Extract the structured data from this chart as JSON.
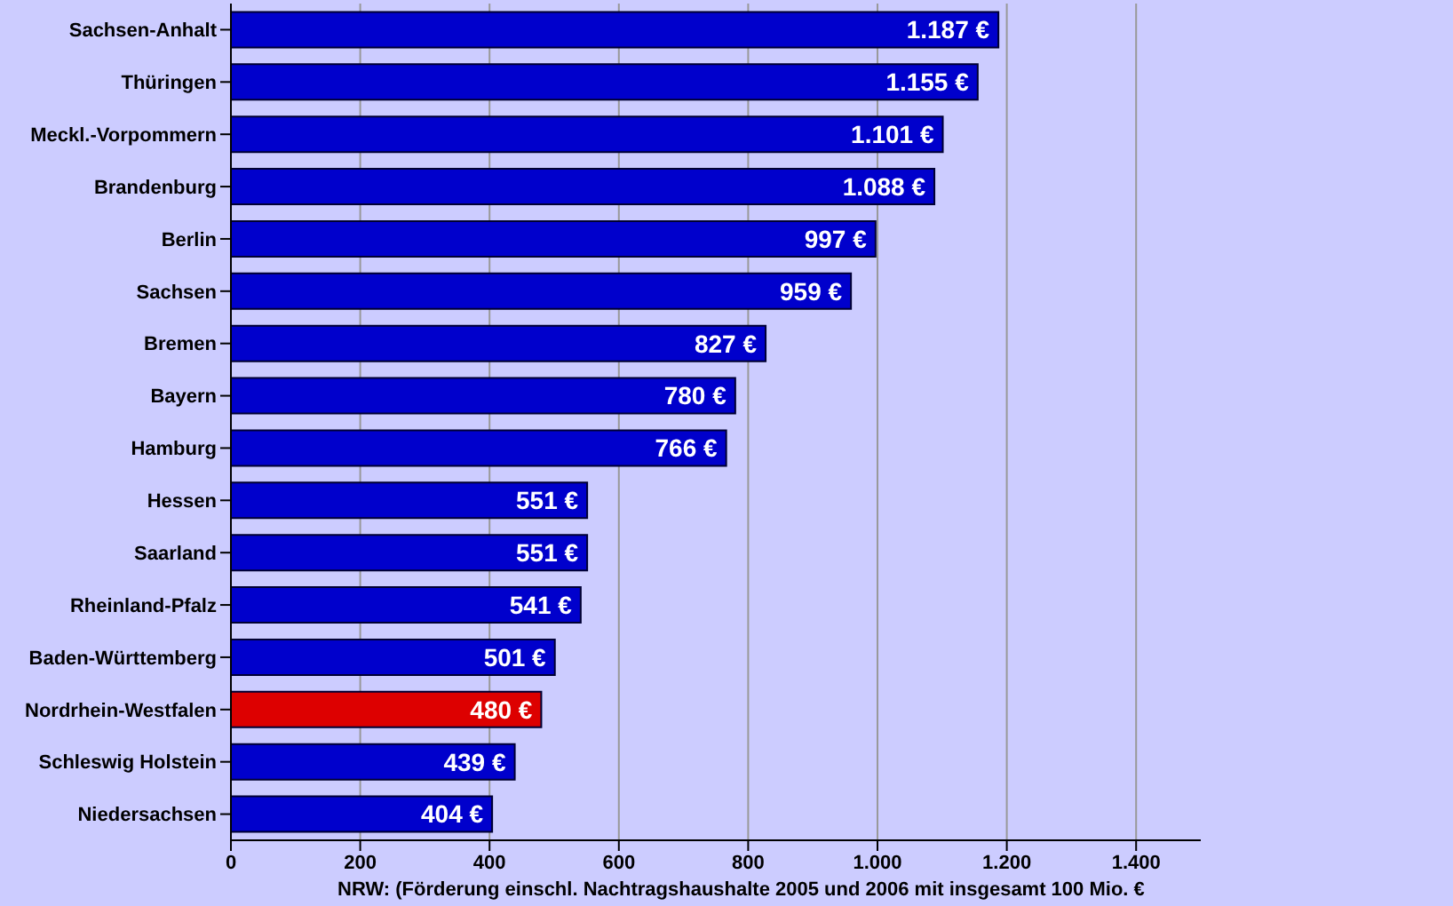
{
  "chart_data": {
    "type": "bar",
    "orientation": "horizontal",
    "categories": [
      "Sachsen-Anhalt",
      "Thüringen",
      "Meckl.-Vorpommern",
      "Brandenburg",
      "Berlin",
      "Sachsen",
      "Bremen",
      "Bayern",
      "Hamburg",
      "Hessen",
      "Saarland",
      "Rheinland-Pfalz",
      "Baden-Württemberg",
      "Nordrhein-Westfalen",
      "Schleswig Holstein",
      "Niedersachsen"
    ],
    "values": [
      1187,
      1155,
      1101,
      1088,
      997,
      959,
      827,
      780,
      766,
      551,
      551,
      541,
      501,
      480,
      439,
      404
    ],
    "value_labels": [
      "1.187 €",
      "1.155 €",
      "1.101 €",
      "1.088 €",
      "997 €",
      "959 €",
      "827 €",
      "780 €",
      "766 €",
      "551 €",
      "551 €",
      "541 €",
      "501 €",
      "480 €",
      "439 €",
      "404 €"
    ],
    "colors": [
      "#0000cc",
      "#0000cc",
      "#0000cc",
      "#0000cc",
      "#0000cc",
      "#0000cc",
      "#0000cc",
      "#0000cc",
      "#0000cc",
      "#0000cc",
      "#0000cc",
      "#0000cc",
      "#0000cc",
      "#dd0000",
      "#0000cc",
      "#0000cc"
    ],
    "xlim": [
      0,
      1500
    ],
    "xticks": [
      0,
      200,
      400,
      {
        "value": 600,
        "label": "600"
      },
      {
        "value": 800,
        "label": "800"
      },
      {
        "value": 1000,
        "label": "1.000"
      },
      {
        "value": 1200,
        "label": "1.200"
      },
      {
        "value": 1400,
        "label": "1.400"
      }
    ],
    "grid": "x",
    "annotations": [
      "NRW: (Förderung einschl. Nachtragshaushalte 2005 und 2006 mit insgesamt 100 Mio. €"
    ]
  }
}
